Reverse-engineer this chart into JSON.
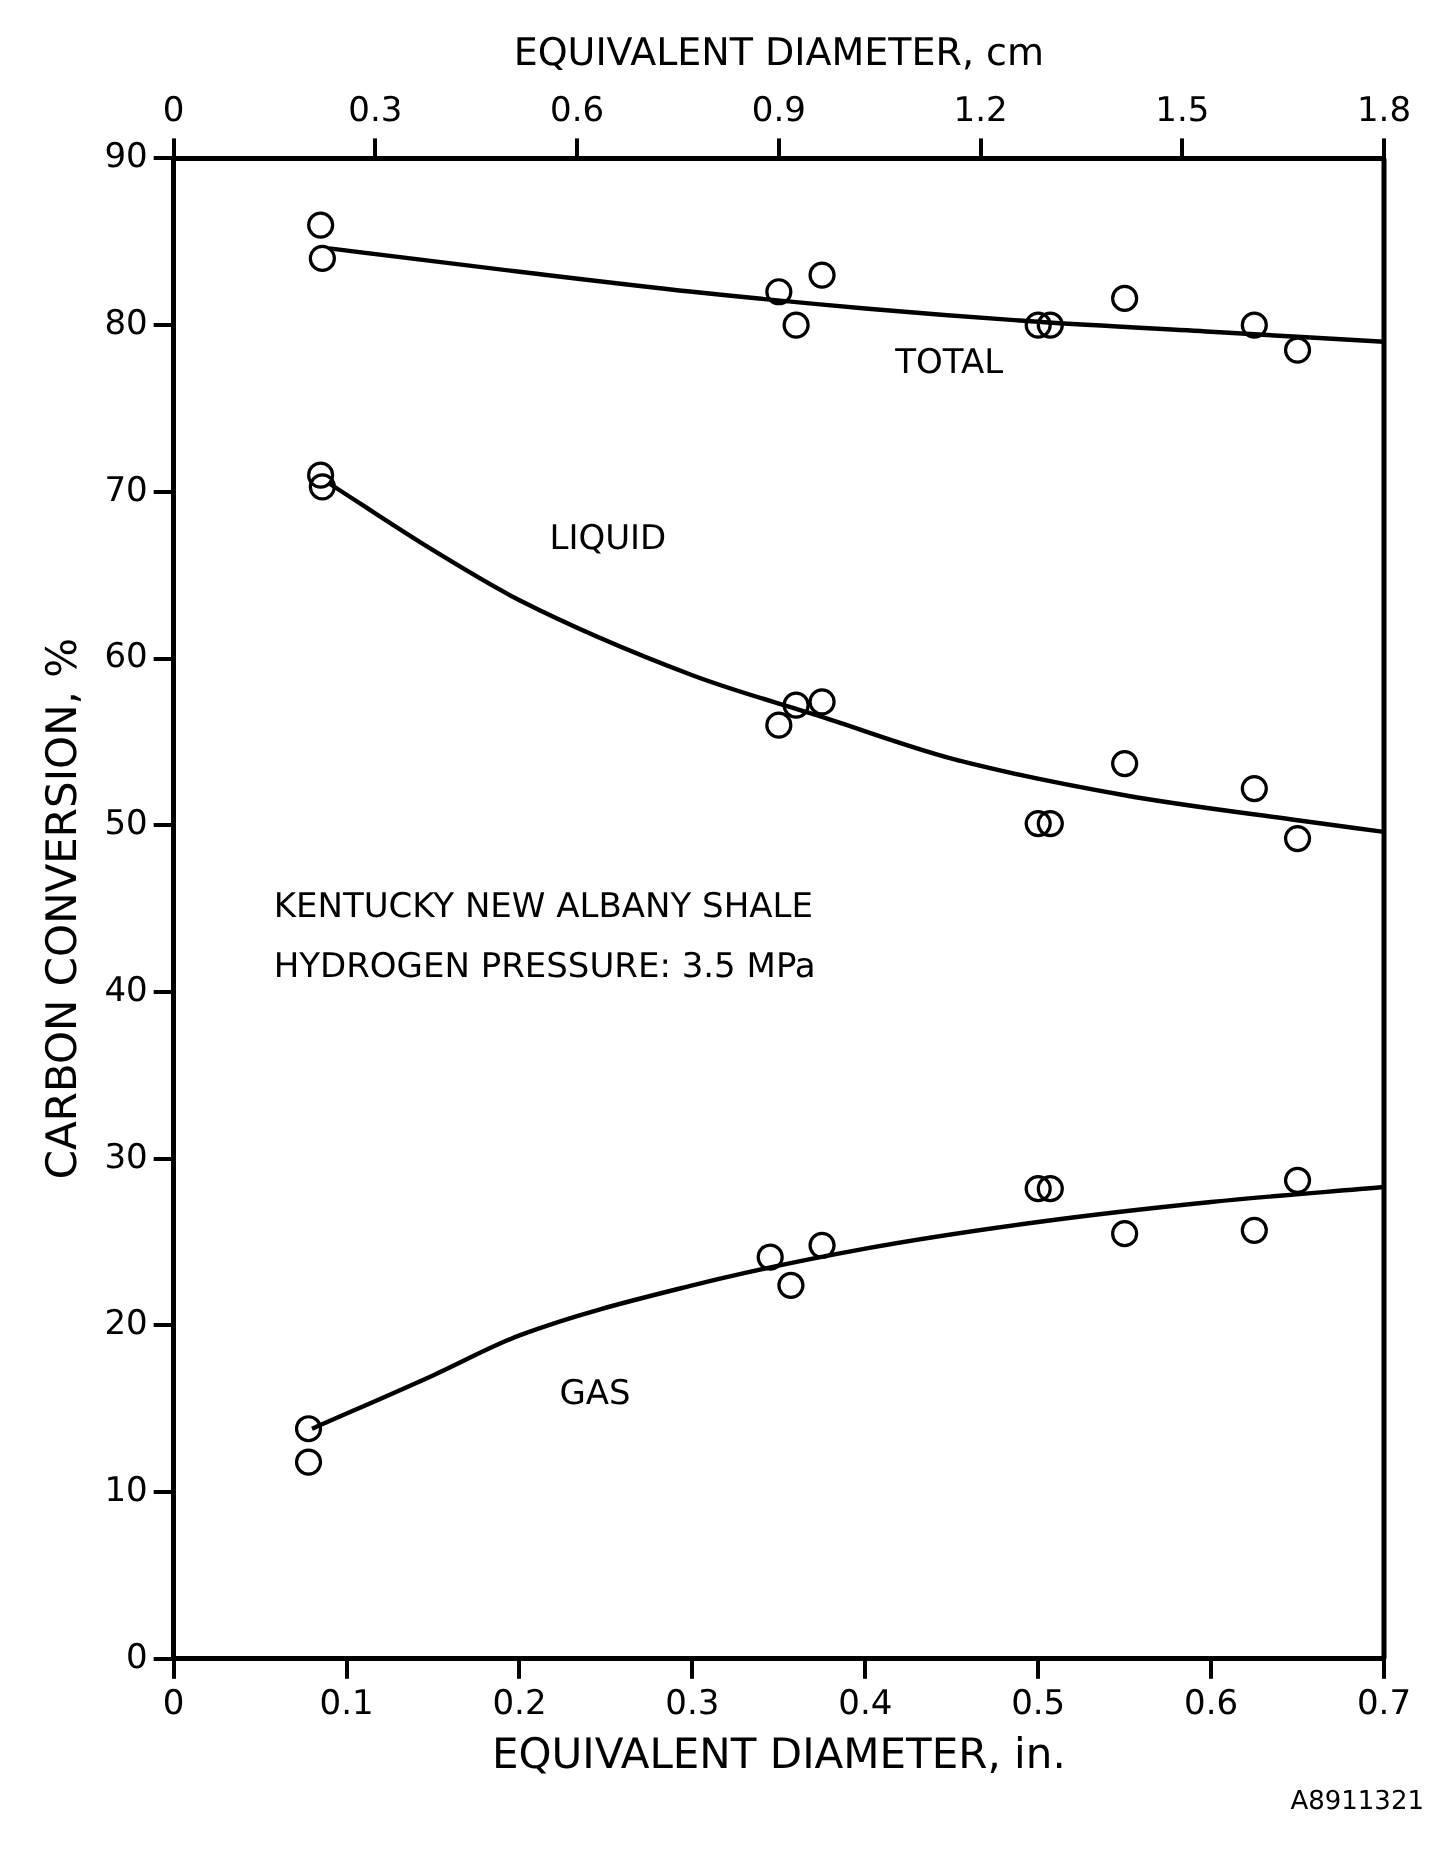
{
  "chart_data": {
    "type": "scatter",
    "xlabel": "EQUIVALENT DIAMETER, in.",
    "ylabel": "CARBON CONVERSION, %",
    "x2label": "EQUIVALENT DIAMETER, cm",
    "xlim": [
      0,
      0.7
    ],
    "xticks": [
      0,
      0.1,
      0.2,
      0.3,
      0.4,
      0.5,
      0.6,
      0.7
    ],
    "ylim": [
      0,
      90
    ],
    "yticks": [
      0,
      10,
      20,
      30,
      40,
      50,
      60,
      70,
      80,
      90
    ],
    "x2lim": [
      0,
      1.8
    ],
    "x2ticks": [
      0,
      0.3,
      0.6,
      0.9,
      1.2,
      1.5,
      1.8
    ],
    "grid": false,
    "legend": false,
    "marker": "circle",
    "annotations": [
      "KENTUCKY NEW ALBANY SHALE",
      "HYDROGEN PRESSURE: 3.5 MPa",
      "A8911321"
    ],
    "series": [
      {
        "type": "scatter",
        "color": "#000000",
        "x": [
          0.085,
          0.086,
          0.35,
          0.36,
          0.375,
          0.5,
          0.507,
          0.55,
          0.625,
          0.65
        ],
        "values": [
          86,
          84,
          82,
          80,
          83,
          80,
          80,
          81.6,
          80,
          78.5
        ]
      },
      {
        "type": "scatter",
        "color": "#000000",
        "x": [
          0.085,
          0.086,
          0.35,
          0.36,
          0.375,
          0.5,
          0.507,
          0.55,
          0.625,
          0.65
        ],
        "values": [
          71,
          70.3,
          56,
          57.2,
          57.4,
          50.1,
          50.1,
          53.7,
          52.2,
          49.2
        ]
      },
      {
        "type": "scatter",
        "color": "#000000",
        "x": [
          0.078,
          0.078,
          0.345,
          0.357,
          0.375,
          0.5,
          0.507,
          0.55,
          0.625,
          0.65
        ],
        "values": [
          13.8,
          11.8,
          24.1,
          22.4,
          24.8,
          28.2,
          28.2,
          25.5,
          25.7,
          28.7
        ]
      },
      {
        "type": "line",
        "name": "TOTAL",
        "color": "#000000",
        "marker": "none",
        "x": [
          0.09,
          0.2,
          0.3,
          0.4,
          0.5,
          0.6,
          0.7
        ],
        "values": [
          84.6,
          83.2,
          82,
          81,
          80.2,
          79.6,
          79
        ]
      },
      {
        "type": "line",
        "name": "LIQUID",
        "color": "#000000",
        "marker": "none",
        "x": [
          0.09,
          0.15,
          0.2,
          0.3,
          0.375,
          0.45,
          0.55,
          0.65,
          0.7
        ],
        "values": [
          70.5,
          66.5,
          63.5,
          59,
          56.5,
          54,
          51.8,
          50.3,
          49.6
        ]
      },
      {
        "type": "line",
        "name": "GAS",
        "color": "#000000",
        "marker": "none",
        "x": [
          0.08,
          0.15,
          0.2,
          0.3,
          0.4,
          0.5,
          0.6,
          0.7
        ],
        "values": [
          13.8,
          17,
          19.4,
          22.4,
          24.6,
          26.2,
          27.4,
          28.3
        ]
      }
    ]
  }
}
